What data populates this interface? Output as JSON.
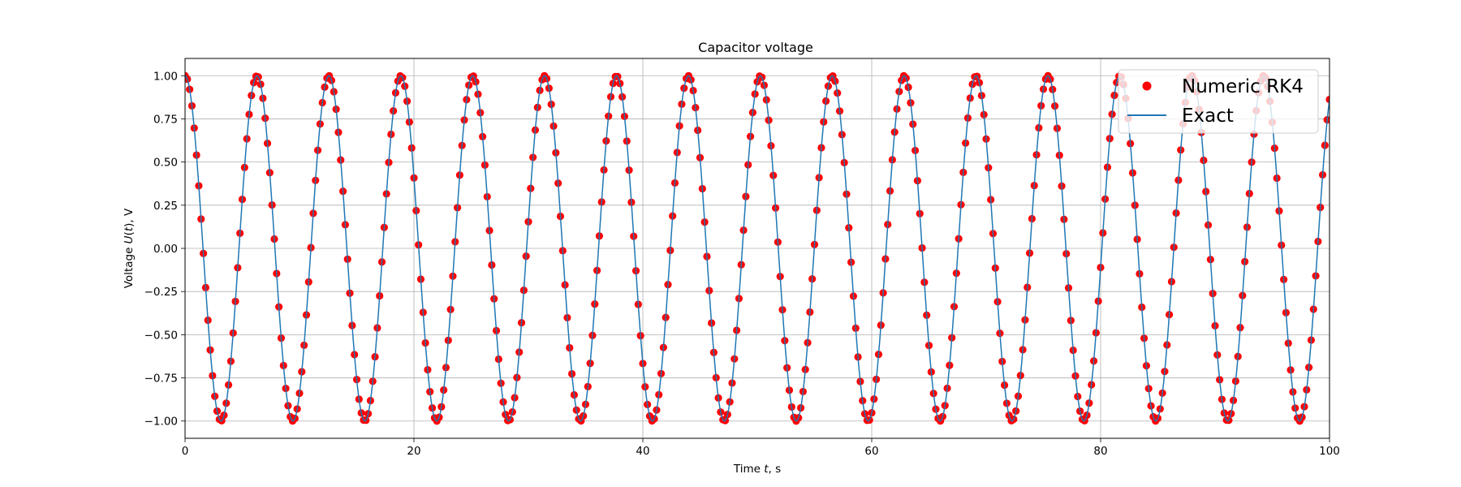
{
  "chart_data": {
    "type": "line",
    "title": "Capacitor voltage",
    "xlabel_parts": [
      "Time ",
      "t",
      ", s"
    ],
    "ylabel_parts": [
      "Voltage ",
      "U",
      "(",
      "t",
      "), V"
    ],
    "xlim": [
      0,
      100
    ],
    "ylim": [
      -1.1,
      1.1
    ],
    "xticks": [
      0,
      20,
      40,
      60,
      80,
      100
    ],
    "xtick_labels": [
      "0",
      "20",
      "40",
      "60",
      "80",
      "100"
    ],
    "yticks": [
      -1.0,
      -0.75,
      -0.5,
      -0.25,
      0.0,
      0.25,
      0.5,
      0.75,
      1.0
    ],
    "ytick_labels": [
      "−1.00",
      "−0.75",
      "−0.50",
      "−0.25",
      "0.00",
      "0.25",
      "0.50",
      "0.75",
      "1.00"
    ],
    "grid": true,
    "legend_position": "upper-right",
    "series": [
      {
        "name": "Numeric RK4",
        "style": "markers",
        "color": "#ff0000",
        "function": "cos(t)",
        "t_start": 0,
        "t_end": 100,
        "t_step": 0.2
      },
      {
        "name": "Exact",
        "style": "line",
        "color": "#1f77b4",
        "function": "cos(t)",
        "t_start": 0,
        "t_end": 100,
        "t_step": 0.05
      }
    ]
  }
}
